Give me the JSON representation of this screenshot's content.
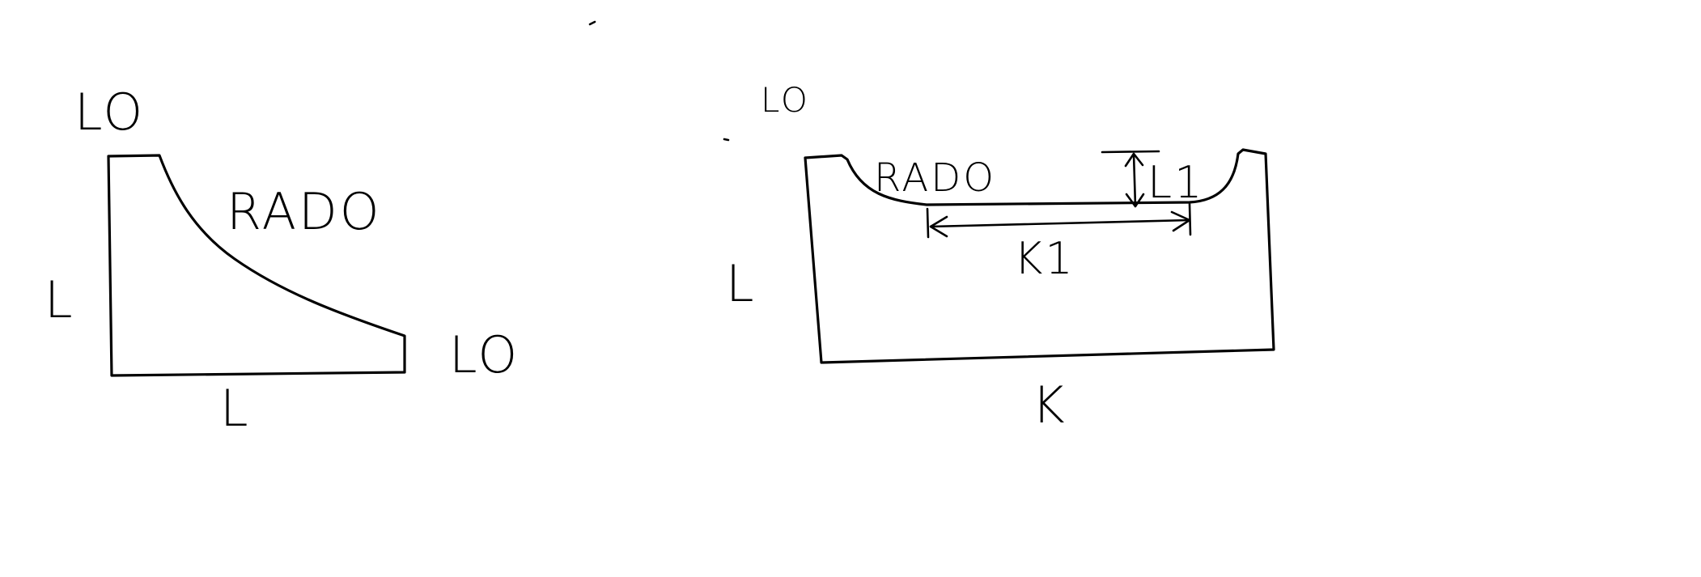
{
  "figure_left": {
    "top_label": "LO",
    "curve_label": "RADO",
    "side_label": "L",
    "bottom_label": "L",
    "right_label": "LO"
  },
  "figure_right": {
    "top_label": "LO",
    "curve_label": "RADO",
    "side_label": "L",
    "depth_label": "L1",
    "width_label": "K1",
    "bottom_label": "K"
  }
}
